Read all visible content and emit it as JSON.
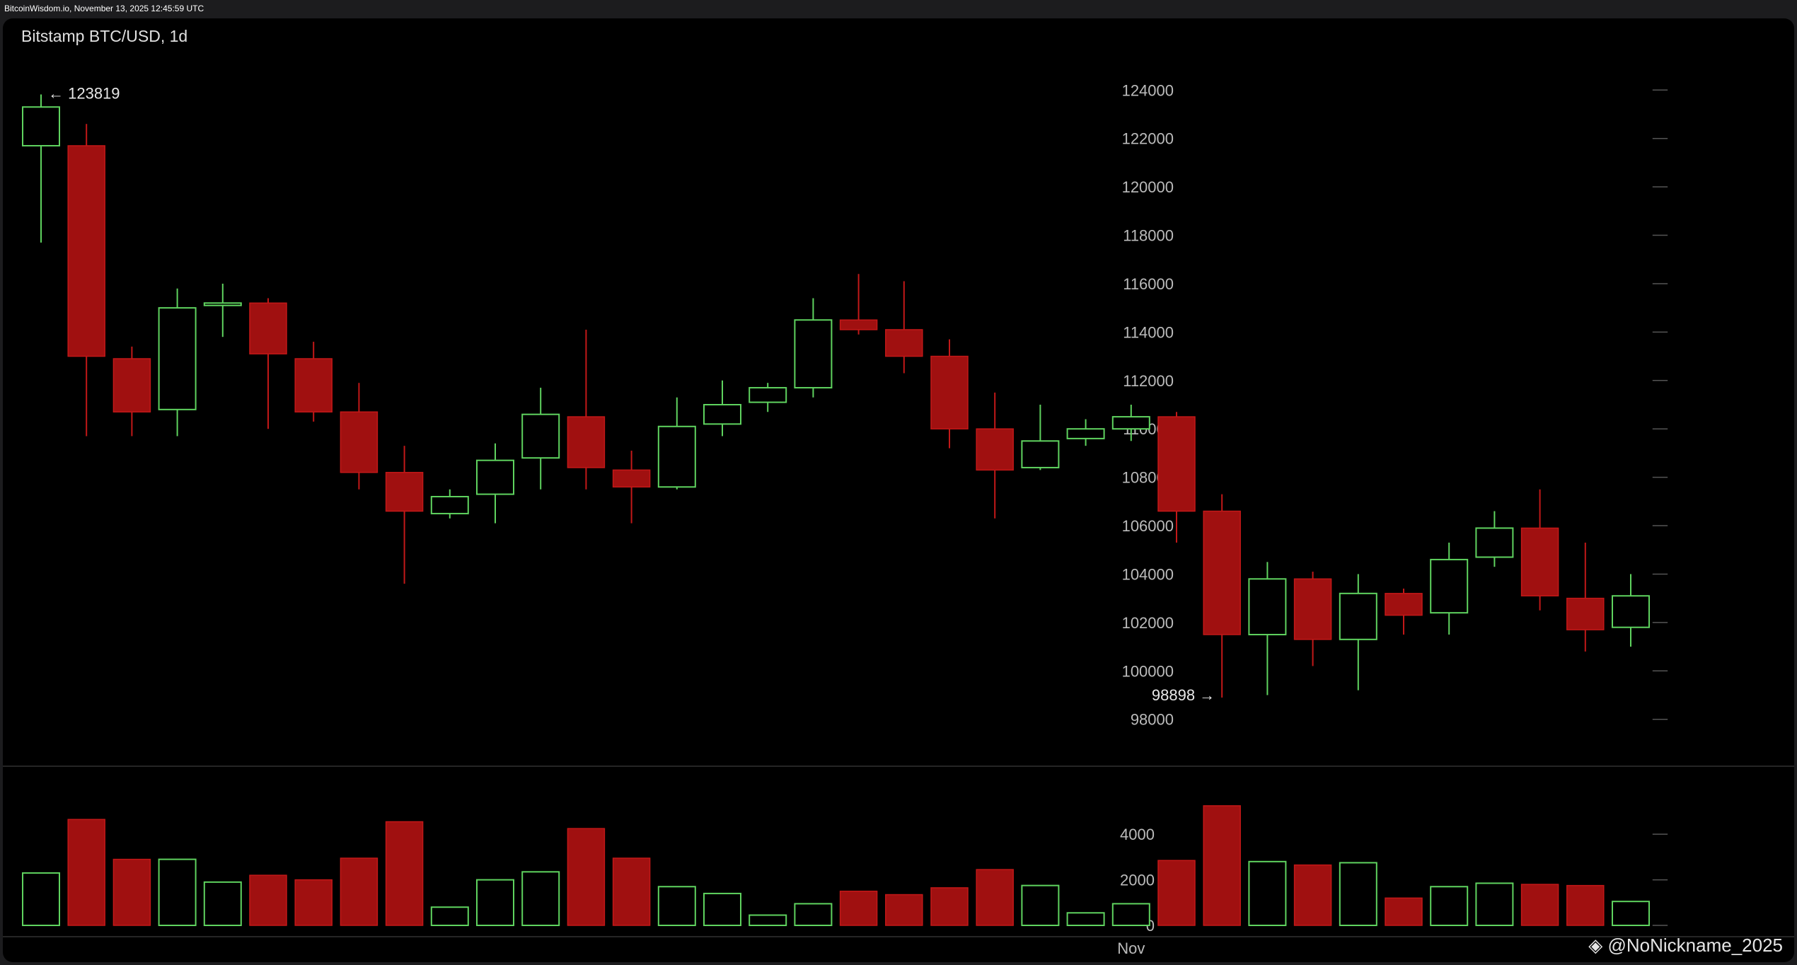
{
  "header": {
    "source_text": "BitcoinWisdom.io, November 13, 2025 12:45:59 UTC"
  },
  "chart_title": "Bitstamp BTC/USD, 1d",
  "watermark": "@NoNickname_2025",
  "colors": {
    "up": "#5fd35f",
    "down": "#a01010",
    "down_border": "#c21818",
    "axis_text": "#bbbbbb",
    "background": "#000000"
  },
  "chart_data": [
    {
      "type": "candlestick",
      "title": "Bitstamp BTC/USD, 1d",
      "ylim": [
        96500,
        125500
      ],
      "yticks": [
        98000,
        100000,
        102000,
        104000,
        106000,
        108000,
        110000,
        112000,
        114000,
        116000,
        118000,
        120000,
        122000,
        124000
      ],
      "annotations": [
        {
          "text": "← 123819",
          "candle": 0,
          "price": 123819
        },
        {
          "text": "98898 →",
          "candle": 26,
          "price": 98898
        }
      ],
      "candles": [
        {
          "o": 121700,
          "h": 123819,
          "l": 117700,
          "c": 123300
        },
        {
          "o": 121700,
          "h": 122600,
          "l": 109700,
          "c": 113000
        },
        {
          "o": 112900,
          "h": 113400,
          "l": 109700,
          "c": 110700
        },
        {
          "o": 110800,
          "h": 115800,
          "l": 109700,
          "c": 115000
        },
        {
          "o": 115100,
          "h": 116000,
          "l": 113800,
          "c": 115200
        },
        {
          "o": 115200,
          "h": 115400,
          "l": 110000,
          "c": 113100
        },
        {
          "o": 112900,
          "h": 113600,
          "l": 110300,
          "c": 110700
        },
        {
          "o": 110700,
          "h": 111900,
          "l": 107500,
          "c": 108200
        },
        {
          "o": 108200,
          "h": 109300,
          "l": 103600,
          "c": 106600
        },
        {
          "o": 106500,
          "h": 107500,
          "l": 106300,
          "c": 107200
        },
        {
          "o": 107300,
          "h": 109400,
          "l": 106100,
          "c": 108700
        },
        {
          "o": 108800,
          "h": 111700,
          "l": 107500,
          "c": 110600
        },
        {
          "o": 110500,
          "h": 114100,
          "l": 107500,
          "c": 108400
        },
        {
          "o": 108300,
          "h": 109100,
          "l": 106100,
          "c": 107600
        },
        {
          "o": 107600,
          "h": 111300,
          "l": 107500,
          "c": 110100
        },
        {
          "o": 110200,
          "h": 112000,
          "l": 109700,
          "c": 111000
        },
        {
          "o": 111100,
          "h": 111900,
          "l": 110700,
          "c": 111700
        },
        {
          "o": 111700,
          "h": 115400,
          "l": 111300,
          "c": 114500
        },
        {
          "o": 114500,
          "h": 116400,
          "l": 113900,
          "c": 114100
        },
        {
          "o": 114100,
          "h": 116100,
          "l": 112300,
          "c": 113000
        },
        {
          "o": 113000,
          "h": 113700,
          "l": 109200,
          "c": 110000
        },
        {
          "o": 110000,
          "h": 111500,
          "l": 106300,
          "c": 108300
        },
        {
          "o": 108400,
          "h": 111000,
          "l": 108300,
          "c": 109500
        },
        {
          "o": 109600,
          "h": 110400,
          "l": 109300,
          "c": 110000
        },
        {
          "o": 110000,
          "h": 111000,
          "l": 109500,
          "c": 110500
        },
        {
          "o": 110500,
          "h": 110700,
          "l": 105300,
          "c": 106600
        },
        {
          "o": 106600,
          "h": 107300,
          "l": 98898,
          "c": 101500
        },
        {
          "o": 101500,
          "h": 104500,
          "l": 99000,
          "c": 103800
        },
        {
          "o": 103800,
          "h": 104100,
          "l": 100200,
          "c": 101300
        },
        {
          "o": 101300,
          "h": 104000,
          "l": 99200,
          "c": 103200
        },
        {
          "o": 103200,
          "h": 103400,
          "l": 101500,
          "c": 102300
        },
        {
          "o": 102400,
          "h": 105300,
          "l": 101500,
          "c": 104600
        },
        {
          "o": 104700,
          "h": 106600,
          "l": 104300,
          "c": 105900
        },
        {
          "o": 105900,
          "h": 107500,
          "l": 102500,
          "c": 103100
        },
        {
          "o": 103000,
          "h": 105300,
          "l": 100800,
          "c": 101700
        },
        {
          "o": 101800,
          "h": 104000,
          "l": 101000,
          "c": 103100
        }
      ]
    },
    {
      "type": "bar",
      "title": "Volume",
      "ylim": [
        0,
        5900
      ],
      "yticks": [
        0,
        2000,
        4000
      ],
      "values": [
        2300,
        4650,
        2900,
        2900,
        1900,
        2200,
        2000,
        2950,
        4550,
        800,
        2000,
        2350,
        4250,
        2950,
        1700,
        1400,
        450,
        950,
        1500,
        1350,
        1650,
        2450,
        1750,
        550,
        950,
        2850,
        5250,
        2800,
        2650,
        2750,
        1200,
        1700,
        1850,
        1800,
        1750,
        1050
      ]
    }
  ],
  "x_axis": {
    "labels": [
      {
        "text": "Nov",
        "candle": 24
      }
    ]
  }
}
